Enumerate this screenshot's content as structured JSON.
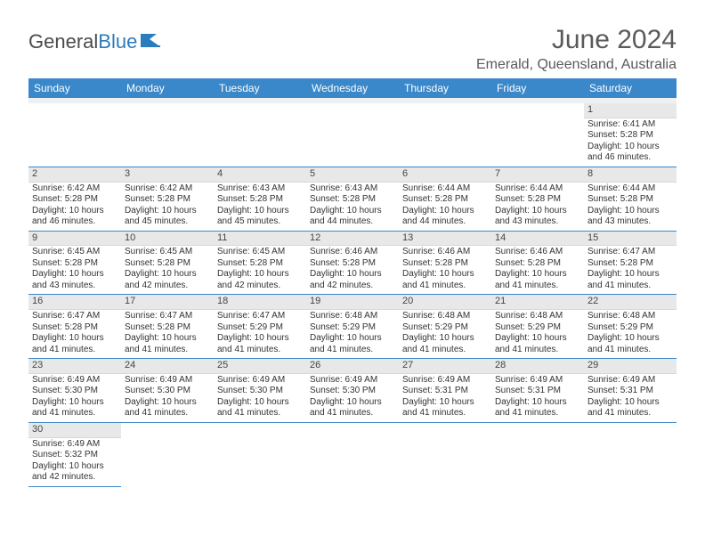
{
  "brand": {
    "word1": "General",
    "word2": "Blue"
  },
  "title": "June 2024",
  "location": "Emerald, Queensland, Australia",
  "columns": [
    "Sunday",
    "Monday",
    "Tuesday",
    "Wednesday",
    "Thursday",
    "Friday",
    "Saturday"
  ],
  "colors": {
    "header_bg": "#3a87c9",
    "header_text": "#ffffff",
    "daynum_bg": "#e8e8e8",
    "row_border": "#3a87c9",
    "spacer_bg": "#f0f0f0",
    "text": "#333333",
    "title_text": "#5a5a5a",
    "logo_gray": "#4a4a4a",
    "logo_blue": "#2b7bbf"
  },
  "fonts": {
    "title_pt": 30,
    "location_pt": 16,
    "header_pt": 12,
    "cell_pt": 10,
    "daynum_pt": 11
  },
  "layout": {
    "first_weekday_index": 6,
    "days_in_month": 30,
    "cols": 7
  },
  "days": {
    "1": {
      "sunrise": "6:41 AM",
      "sunset": "5:28 PM",
      "daylight": "10 hours and 46 minutes."
    },
    "2": {
      "sunrise": "6:42 AM",
      "sunset": "5:28 PM",
      "daylight": "10 hours and 46 minutes."
    },
    "3": {
      "sunrise": "6:42 AM",
      "sunset": "5:28 PM",
      "daylight": "10 hours and 45 minutes."
    },
    "4": {
      "sunrise": "6:43 AM",
      "sunset": "5:28 PM",
      "daylight": "10 hours and 45 minutes."
    },
    "5": {
      "sunrise": "6:43 AM",
      "sunset": "5:28 PM",
      "daylight": "10 hours and 44 minutes."
    },
    "6": {
      "sunrise": "6:44 AM",
      "sunset": "5:28 PM",
      "daylight": "10 hours and 44 minutes."
    },
    "7": {
      "sunrise": "6:44 AM",
      "sunset": "5:28 PM",
      "daylight": "10 hours and 43 minutes."
    },
    "8": {
      "sunrise": "6:44 AM",
      "sunset": "5:28 PM",
      "daylight": "10 hours and 43 minutes."
    },
    "9": {
      "sunrise": "6:45 AM",
      "sunset": "5:28 PM",
      "daylight": "10 hours and 43 minutes."
    },
    "10": {
      "sunrise": "6:45 AM",
      "sunset": "5:28 PM",
      "daylight": "10 hours and 42 minutes."
    },
    "11": {
      "sunrise": "6:45 AM",
      "sunset": "5:28 PM",
      "daylight": "10 hours and 42 minutes."
    },
    "12": {
      "sunrise": "6:46 AM",
      "sunset": "5:28 PM",
      "daylight": "10 hours and 42 minutes."
    },
    "13": {
      "sunrise": "6:46 AM",
      "sunset": "5:28 PM",
      "daylight": "10 hours and 41 minutes."
    },
    "14": {
      "sunrise": "6:46 AM",
      "sunset": "5:28 PM",
      "daylight": "10 hours and 41 minutes."
    },
    "15": {
      "sunrise": "6:47 AM",
      "sunset": "5:28 PM",
      "daylight": "10 hours and 41 minutes."
    },
    "16": {
      "sunrise": "6:47 AM",
      "sunset": "5:28 PM",
      "daylight": "10 hours and 41 minutes."
    },
    "17": {
      "sunrise": "6:47 AM",
      "sunset": "5:28 PM",
      "daylight": "10 hours and 41 minutes."
    },
    "18": {
      "sunrise": "6:47 AM",
      "sunset": "5:29 PM",
      "daylight": "10 hours and 41 minutes."
    },
    "19": {
      "sunrise": "6:48 AM",
      "sunset": "5:29 PM",
      "daylight": "10 hours and 41 minutes."
    },
    "20": {
      "sunrise": "6:48 AM",
      "sunset": "5:29 PM",
      "daylight": "10 hours and 41 minutes."
    },
    "21": {
      "sunrise": "6:48 AM",
      "sunset": "5:29 PM",
      "daylight": "10 hours and 41 minutes."
    },
    "22": {
      "sunrise": "6:48 AM",
      "sunset": "5:29 PM",
      "daylight": "10 hours and 41 minutes."
    },
    "23": {
      "sunrise": "6:49 AM",
      "sunset": "5:30 PM",
      "daylight": "10 hours and 41 minutes."
    },
    "24": {
      "sunrise": "6:49 AM",
      "sunset": "5:30 PM",
      "daylight": "10 hours and 41 minutes."
    },
    "25": {
      "sunrise": "6:49 AM",
      "sunset": "5:30 PM",
      "daylight": "10 hours and 41 minutes."
    },
    "26": {
      "sunrise": "6:49 AM",
      "sunset": "5:30 PM",
      "daylight": "10 hours and 41 minutes."
    },
    "27": {
      "sunrise": "6:49 AM",
      "sunset": "5:31 PM",
      "daylight": "10 hours and 41 minutes."
    },
    "28": {
      "sunrise": "6:49 AM",
      "sunset": "5:31 PM",
      "daylight": "10 hours and 41 minutes."
    },
    "29": {
      "sunrise": "6:49 AM",
      "sunset": "5:31 PM",
      "daylight": "10 hours and 41 minutes."
    },
    "30": {
      "sunrise": "6:49 AM",
      "sunset": "5:32 PM",
      "daylight": "10 hours and 42 minutes."
    }
  },
  "labels": {
    "sunrise": "Sunrise: ",
    "sunset": "Sunset: ",
    "daylight": "Daylight: "
  }
}
